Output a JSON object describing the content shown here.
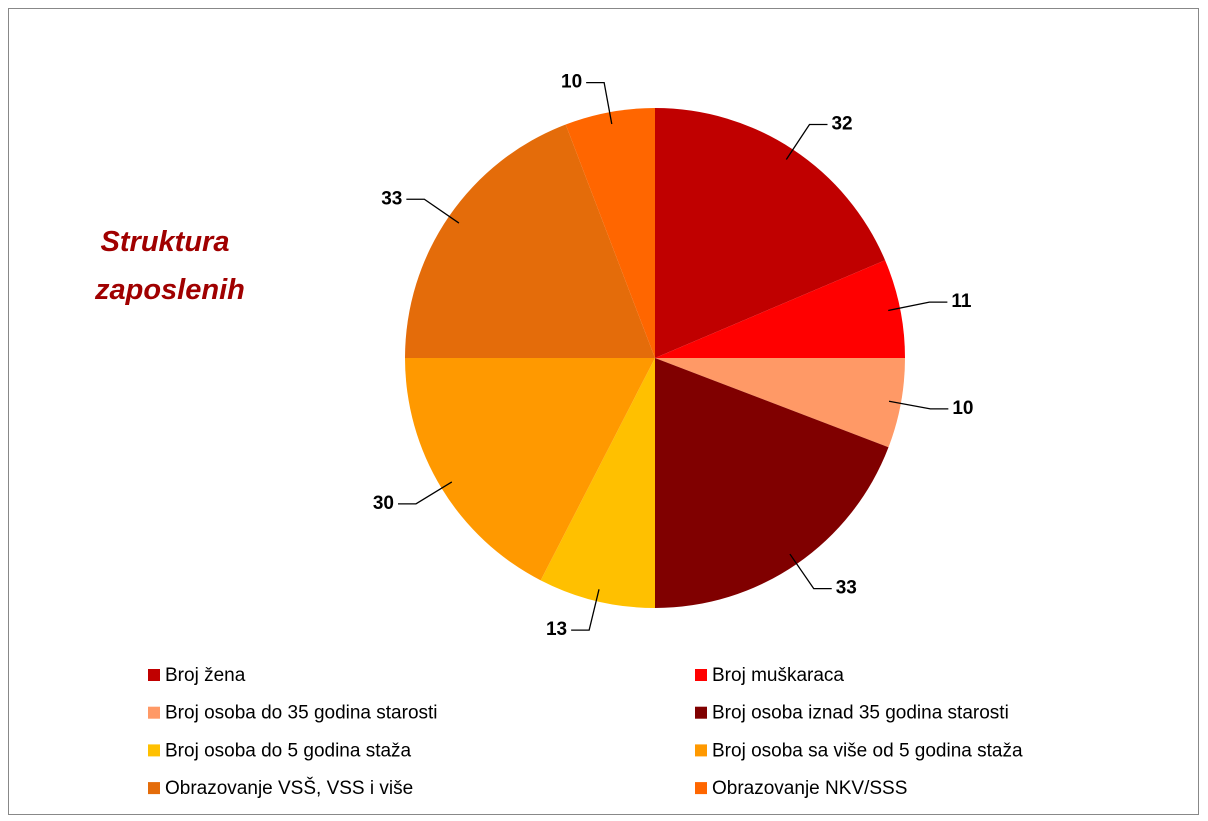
{
  "chart_data": {
    "type": "pie",
    "title": "Struktura zaposlenih",
    "categories": [
      "Broj žena",
      "Broj muškaraca",
      "Broj osoba do 35 godina starosti",
      "Broj osoba iznad 35 godina starosti",
      "Broj osoba do 5 godina staža",
      "Broj osoba sa više od 5 godina staža",
      "Obrazovanje VSŠ, VSS i više",
      "Obrazovanje NKV/SSS"
    ],
    "values": [
      32,
      11,
      10,
      33,
      13,
      30,
      33,
      10
    ],
    "colors": [
      "#C00000",
      "#FF0000",
      "#FF9966",
      "#800000",
      "#FFC000",
      "#FF9900",
      "#E46C0A",
      "#FF6600"
    ]
  }
}
